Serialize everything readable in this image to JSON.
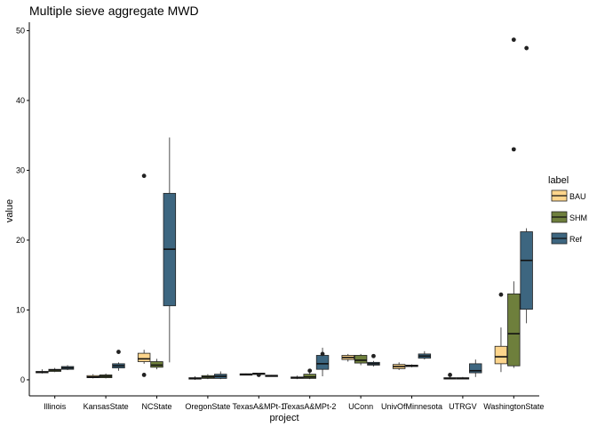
{
  "chart_data": {
    "type": "boxplot",
    "title": "Multiple sieve aggregate MWD",
    "xlabel": "project",
    "ylabel": "value",
    "ylim": [
      -2.3,
      51.2
    ],
    "yticks": [
      0,
      10,
      20,
      30,
      40,
      50
    ],
    "grid": false,
    "legend_position": "right",
    "legend_title": "label",
    "categories": [
      "Illinois",
      "KansasState",
      "NCState",
      "OregonState",
      "TexasA&MPt-1",
      "TexasA&MPt-2",
      "UConn",
      "UnivOfMinnesota",
      "UTRGV",
      "WashingtonState"
    ],
    "category_labels": [
      "Illinois",
      "KansasState",
      "NCState",
      "OregonState",
      "TexasA&MPt-1",
      "TexasA&MPt-2",
      "UConn",
      "UnivOfMinnesota",
      "UTRGV",
      "WashingtonState"
    ],
    "series": [
      {
        "name": "BAU",
        "color": "#FDD58C"
      },
      {
        "name": "SHM",
        "color": "#6E7F3C"
      },
      {
        "name": "Ref",
        "color": "#3D6680"
      }
    ],
    "boxes": [
      {
        "category": 0,
        "series": "BAU",
        "min": 0.9,
        "q1": 1.0,
        "median": 1.1,
        "q3": 1.2,
        "max": 1.5,
        "outliers": []
      },
      {
        "category": 0,
        "series": "SHM",
        "min": 1.1,
        "q1": 1.2,
        "median": 1.4,
        "q3": 1.5,
        "max": 1.7,
        "outliers": []
      },
      {
        "category": 0,
        "series": "Ref",
        "min": 1.4,
        "q1": 1.5,
        "median": 1.7,
        "q3": 1.9,
        "max": 2.1,
        "outliers": []
      },
      {
        "category": 1,
        "series": "BAU",
        "min": 0.2,
        "q1": 0.3,
        "median": 0.4,
        "q3": 0.6,
        "max": 0.8,
        "outliers": []
      },
      {
        "category": 1,
        "series": "SHM",
        "min": 0.2,
        "q1": 0.3,
        "median": 0.5,
        "q3": 0.7,
        "max": 0.9,
        "outliers": []
      },
      {
        "category": 1,
        "series": "Ref",
        "min": 1.3,
        "q1": 1.7,
        "median": 2.0,
        "q3": 2.3,
        "max": 2.5,
        "outliers": [
          4.0
        ]
      },
      {
        "category": 2,
        "series": "BAU",
        "min": 2.3,
        "q1": 2.6,
        "median": 3.0,
        "q3": 3.8,
        "max": 4.3,
        "outliers": [
          29.2,
          0.7
        ]
      },
      {
        "category": 2,
        "series": "SHM",
        "min": 1.5,
        "q1": 1.8,
        "median": 2.1,
        "q3": 2.6,
        "max": 3.0,
        "outliers": []
      },
      {
        "category": 2,
        "series": "Ref",
        "min": 2.5,
        "q1": 10.6,
        "median": 18.7,
        "q3": 26.7,
        "max": 34.7,
        "outliers": []
      },
      {
        "category": 3,
        "series": "BAU",
        "min": 0.0,
        "q1": 0.1,
        "median": 0.2,
        "q3": 0.3,
        "max": 0.5,
        "outliers": []
      },
      {
        "category": 3,
        "series": "SHM",
        "min": 0.1,
        "q1": 0.2,
        "median": 0.4,
        "q3": 0.6,
        "max": 0.8,
        "outliers": []
      },
      {
        "category": 3,
        "series": "Ref",
        "min": 0.1,
        "q1": 0.2,
        "median": 0.5,
        "q3": 0.8,
        "max": 1.2,
        "outliers": []
      },
      {
        "category": 4,
        "series": "BAU",
        "min": 0.7,
        "q1": 0.75,
        "median": 0.8,
        "q3": 0.85,
        "max": 0.9,
        "outliers": []
      },
      {
        "category": 4,
        "series": "SHM",
        "min": 0.8,
        "q1": 0.85,
        "median": 0.9,
        "q3": 0.95,
        "max": 1.0,
        "outliers": [
          0.7
        ]
      },
      {
        "category": 4,
        "series": "Ref",
        "min": 0.5,
        "q1": 0.55,
        "median": 0.6,
        "q3": 0.65,
        "max": 0.7,
        "outliers": []
      },
      {
        "category": 5,
        "series": "BAU",
        "min": 0.1,
        "q1": 0.2,
        "median": 0.3,
        "q3": 0.4,
        "max": 0.6,
        "outliers": []
      },
      {
        "category": 5,
        "series": "SHM",
        "min": 0.1,
        "q1": 0.2,
        "median": 0.4,
        "q3": 0.8,
        "max": 1.1,
        "outliers": [
          1.3
        ]
      },
      {
        "category": 5,
        "series": "Ref",
        "min": 0.5,
        "q1": 1.5,
        "median": 2.3,
        "q3": 3.5,
        "max": 4.6,
        "outliers": [
          3.7
        ]
      },
      {
        "category": 6,
        "series": "BAU",
        "min": 2.6,
        "q1": 2.9,
        "median": 3.2,
        "q3": 3.5,
        "max": 3.7,
        "outliers": []
      },
      {
        "category": 6,
        "series": "SHM",
        "min": 2.1,
        "q1": 2.4,
        "median": 2.8,
        "q3": 3.5,
        "max": 3.7,
        "outliers": []
      },
      {
        "category": 6,
        "series": "Ref",
        "min": 1.9,
        "q1": 2.1,
        "median": 2.3,
        "q3": 2.5,
        "max": 2.7,
        "outliers": [
          3.4
        ]
      },
      {
        "category": 7,
        "series": "BAU",
        "min": 1.4,
        "q1": 1.6,
        "median": 1.9,
        "q3": 2.2,
        "max": 2.5,
        "outliers": []
      },
      {
        "category": 7,
        "series": "SHM",
        "min": 1.8,
        "q1": 1.9,
        "median": 2.0,
        "q3": 2.1,
        "max": 2.2,
        "outliers": []
      },
      {
        "category": 7,
        "series": "Ref",
        "min": 2.9,
        "q1": 3.1,
        "median": 3.4,
        "q3": 3.7,
        "max": 4.1,
        "outliers": []
      },
      {
        "category": 8,
        "series": "BAU",
        "min": 0.1,
        "q1": 0.15,
        "median": 0.2,
        "q3": 0.3,
        "max": 0.4,
        "outliers": [
          0.7
        ]
      },
      {
        "category": 8,
        "series": "SHM",
        "min": 0.1,
        "q1": 0.15,
        "median": 0.2,
        "q3": 0.3,
        "max": 0.4,
        "outliers": []
      },
      {
        "category": 8,
        "series": "Ref",
        "min": 0.4,
        "q1": 1.0,
        "median": 1.3,
        "q3": 2.3,
        "max": 2.9,
        "outliers": []
      },
      {
        "category": 9,
        "series": "BAU",
        "min": 1.1,
        "q1": 2.3,
        "median": 3.3,
        "q3": 4.8,
        "max": 7.5,
        "outliers": [
          12.2
        ]
      },
      {
        "category": 9,
        "series": "SHM",
        "min": 1.7,
        "q1": 2.0,
        "median": 6.6,
        "q3": 12.3,
        "max": 14.1,
        "outliers": [
          33.0,
          48.7
        ]
      },
      {
        "category": 9,
        "series": "Ref",
        "min": 8.1,
        "q1": 10.1,
        "median": 17.1,
        "q3": 21.2,
        "max": 21.7,
        "outliers": [
          47.5
        ]
      }
    ]
  }
}
